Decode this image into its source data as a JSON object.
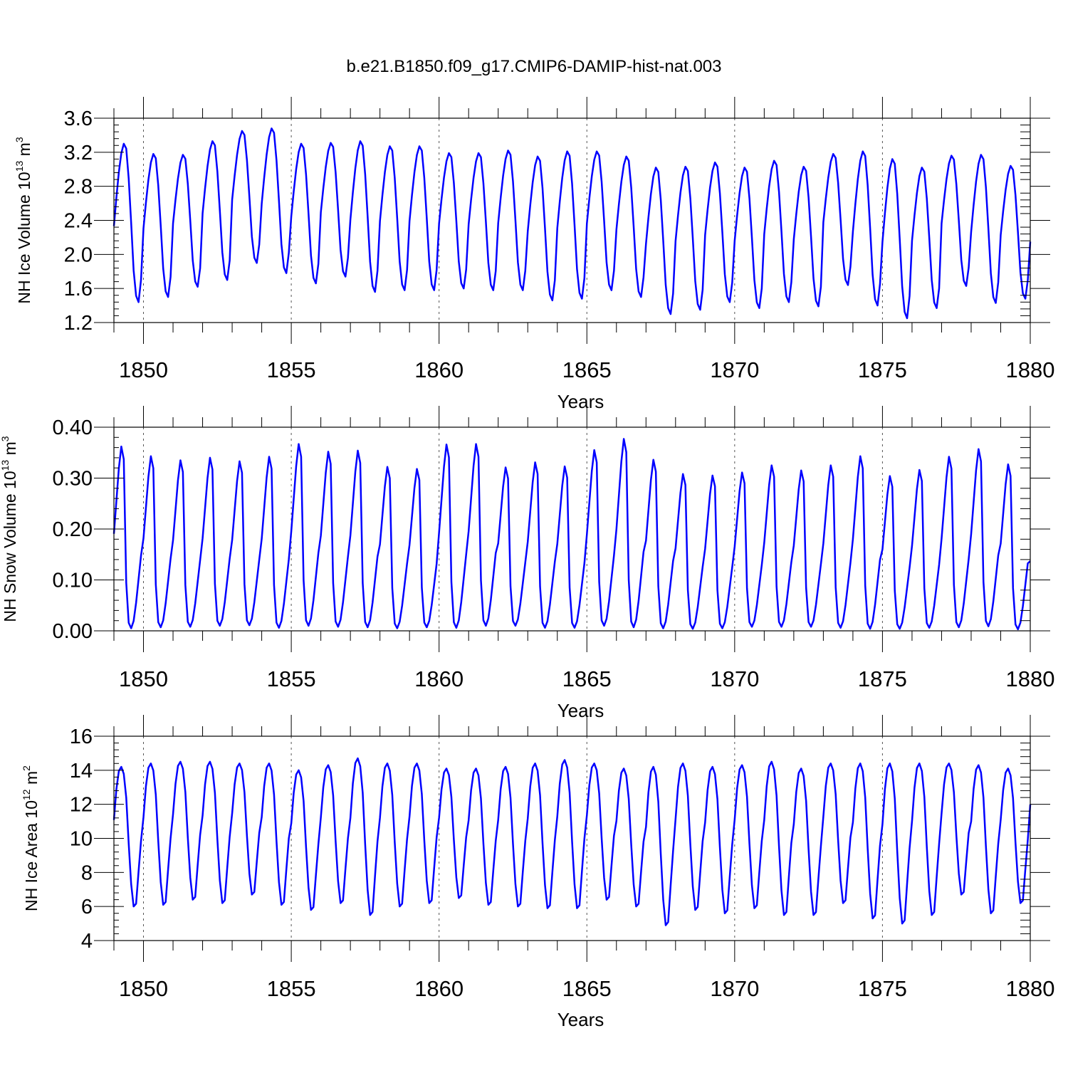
{
  "figure_title": "b.e21.B1850.f09_g17.CMIP6-DAMIP-hist-nat.003",
  "colors": {
    "line": "#0000ff",
    "axis": "#000000",
    "ref_grid": "#555555"
  },
  "chart_data": [
    {
      "type": "line",
      "ylabel_main": "NH Ice Volume 10",
      "ylabel_exp": "13",
      "ylabel_unit": " m",
      "ylabel_unit_exp": "3",
      "xlabel": "Years",
      "xlim": [
        1849,
        1880
      ],
      "ylim": [
        1.2,
        3.6
      ],
      "yticks": [
        1.2,
        1.6,
        2.0,
        2.4,
        2.8,
        3.2,
        3.6
      ],
      "ytick_labels": [
        "1.2",
        "1.6",
        "2.0",
        "2.4",
        "2.8",
        "3.2",
        "3.6"
      ],
      "xticks": [
        1850,
        1855,
        1860,
        1865,
        1870,
        1875,
        1880
      ],
      "xtick_labels": [
        "1850",
        "1855",
        "1860",
        "1865",
        "1870",
        "1875",
        "1880"
      ],
      "ref_lines_x": [
        1850,
        1855,
        1860,
        1865,
        1870,
        1875
      ],
      "seasonal_shape": [
        0.48,
        0.66,
        0.82,
        0.94,
        1.0,
        0.97,
        0.78,
        0.5,
        0.2,
        0.04,
        0.0,
        0.14
      ],
      "annual_max": [
        3.3,
        3.18,
        3.17,
        3.33,
        3.45,
        3.48,
        3.3,
        3.31,
        3.33,
        3.27,
        3.27,
        3.19,
        3.19,
        3.22,
        3.15,
        3.21,
        3.21,
        3.15,
        3.02,
        3.03,
        3.08,
        3.02,
        3.1,
        3.03,
        3.18,
        3.21,
        3.12,
        3.02,
        3.16,
        3.17,
        3.04
      ],
      "annual_min": [
        1.44,
        1.5,
        1.62,
        1.7,
        1.9,
        1.78,
        1.66,
        1.74,
        1.56,
        1.58,
        1.58,
        1.6,
        1.58,
        1.58,
        1.46,
        1.48,
        1.58,
        1.5,
        1.3,
        1.35,
        1.44,
        1.37,
        1.44,
        1.39,
        1.64,
        1.4,
        1.25,
        1.37,
        1.63,
        1.43,
        1.48
      ],
      "end_value": 2.15,
      "series_note": "monthly values = annual_min + seasonal_shape * (annual_max - annual_min)"
    },
    {
      "type": "line",
      "ylabel_main": "NH Snow Volume 10",
      "ylabel_exp": "13",
      "ylabel_unit": " m",
      "ylabel_unit_exp": "3",
      "xlabel": "Years",
      "xlim": [
        1849,
        1880
      ],
      "ylim": [
        0.0,
        0.4
      ],
      "yticks": [
        0.0,
        0.1,
        0.2,
        0.3,
        0.4
      ],
      "ytick_labels": [
        "0.00",
        "0.10",
        "0.20",
        "0.30",
        "0.40"
      ],
      "xticks": [
        1850,
        1855,
        1860,
        1865,
        1870,
        1875,
        1880
      ],
      "xtick_labels": [
        "1850",
        "1855",
        "1860",
        "1865",
        "1870",
        "1875",
        "1880"
      ],
      "ref_lines_x": [
        1850,
        1855,
        1860,
        1865,
        1870,
        1875
      ],
      "seasonal_shape": [
        0.52,
        0.7,
        0.88,
        1.0,
        0.93,
        0.25,
        0.03,
        0.0,
        0.04,
        0.14,
        0.27,
        0.4
      ],
      "annual_max": [
        0.362,
        0.343,
        0.335,
        0.34,
        0.333,
        0.342,
        0.367,
        0.352,
        0.354,
        0.322,
        0.318,
        0.366,
        0.367,
        0.321,
        0.331,
        0.323,
        0.355,
        0.377,
        0.336,
        0.308,
        0.305,
        0.311,
        0.325,
        0.315,
        0.325,
        0.343,
        0.304,
        0.316,
        0.342,
        0.357,
        0.327
      ],
      "annual_min": [
        0.005,
        0.007,
        0.008,
        0.01,
        0.011,
        0.006,
        0.01,
        0.008,
        0.007,
        0.005,
        0.007,
        0.006,
        0.01,
        0.01,
        0.006,
        0.006,
        0.01,
        0.007,
        0.005,
        0.004,
        0.005,
        0.008,
        0.008,
        0.008,
        0.006,
        0.004,
        0.004,
        0.006,
        0.007,
        0.009,
        0.003
      ],
      "end_value": 0.137,
      "series_note": "monthly values = annual_min + seasonal_shape * (annual_max - annual_min)"
    },
    {
      "type": "line",
      "ylabel_main": "NH Ice Area 10",
      "ylabel_exp": "12",
      "ylabel_unit": " m",
      "ylabel_unit_exp": "2",
      "xlabel": "Years",
      "xlim": [
        1849,
        1880
      ],
      "ylim": [
        4,
        16
      ],
      "yticks": [
        4,
        6,
        8,
        10,
        12,
        14,
        16
      ],
      "ytick_labels": [
        "4",
        "6",
        "8",
        "10",
        "12",
        "14",
        "16"
      ],
      "xticks": [
        1850,
        1855,
        1860,
        1865,
        1870,
        1875,
        1880
      ],
      "xtick_labels": [
        "1850",
        "1855",
        "1860",
        "1865",
        "1870",
        "1875",
        "1880"
      ],
      "ref_lines_x": [
        1850,
        1855,
        1860,
        1865,
        1870,
        1875
      ],
      "seasonal_shape": [
        0.62,
        0.84,
        0.97,
        1.0,
        0.95,
        0.78,
        0.45,
        0.16,
        0.0,
        0.02,
        0.25,
        0.47
      ],
      "annual_max": [
        14.2,
        14.4,
        14.5,
        14.5,
        14.4,
        14.4,
        14.0,
        14.3,
        14.7,
        14.4,
        14.4,
        14.1,
        14.1,
        14.2,
        14.4,
        14.6,
        14.4,
        14.1,
        14.2,
        14.4,
        14.2,
        14.3,
        14.5,
        14.1,
        14.4,
        14.4,
        14.4,
        14.4,
        14.4,
        14.3,
        14.1
      ],
      "annual_min": [
        6.0,
        6.1,
        6.4,
        6.2,
        6.7,
        6.1,
        5.8,
        6.2,
        5.5,
        6.0,
        6.2,
        6.5,
        6.1,
        6.0,
        5.9,
        5.9,
        6.4,
        6.0,
        4.9,
        5.8,
        5.6,
        5.9,
        5.5,
        5.5,
        6.2,
        5.3,
        5.0,
        5.5,
        6.7,
        5.6,
        6.2
      ],
      "end_value": 12.0,
      "series_note": "monthly values = annual_min + seasonal_shape * (annual_max - annual_min)"
    }
  ]
}
